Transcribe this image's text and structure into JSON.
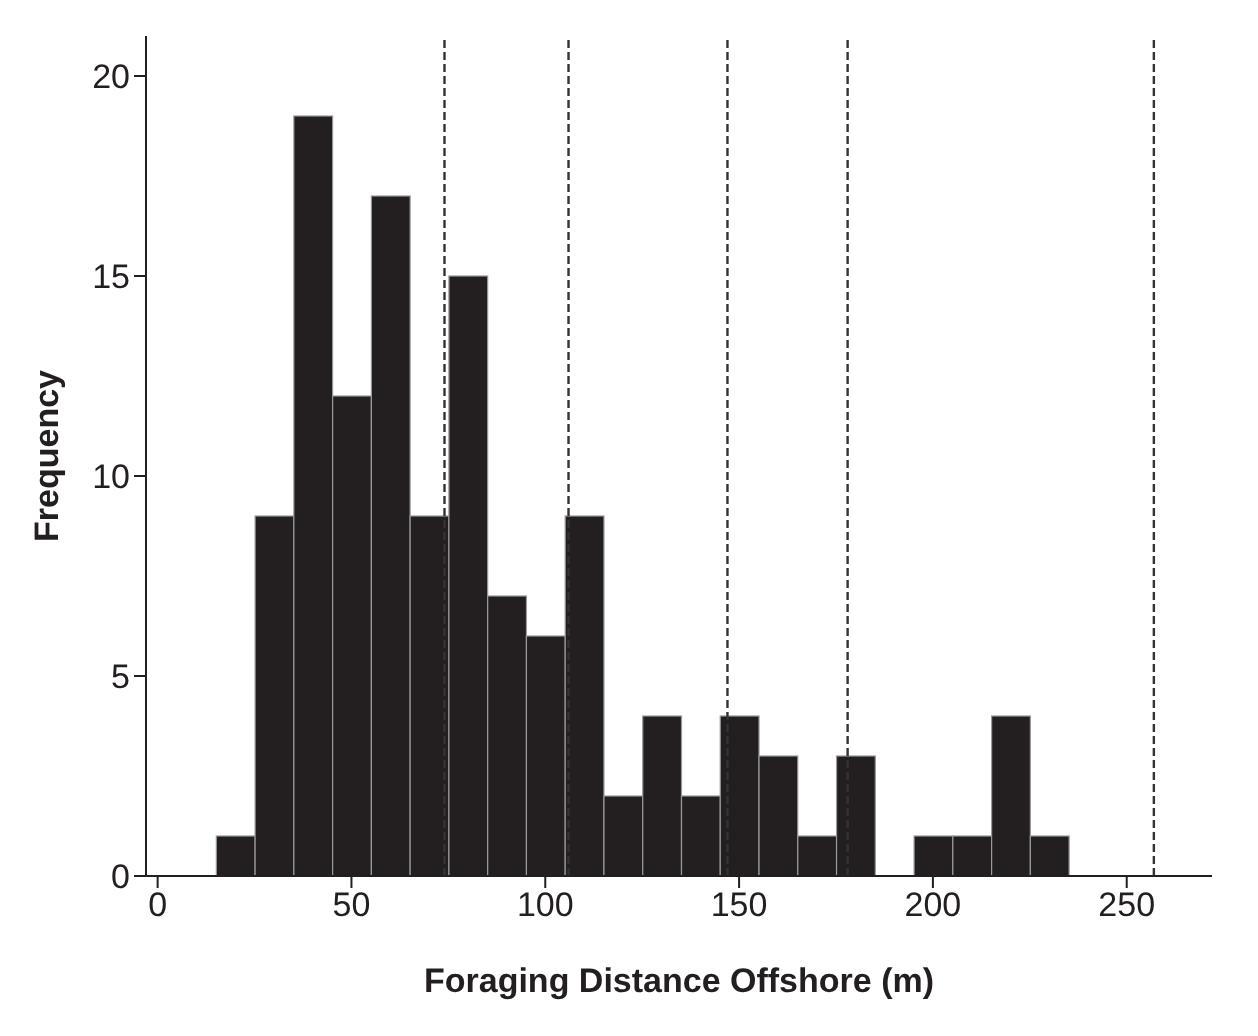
{
  "chart_data": {
    "type": "histogram",
    "xlabel": "Foraging Distance Offshore (m)",
    "ylabel": "Frequency",
    "bins": [
      15,
      25,
      35,
      45,
      55,
      65,
      75,
      85,
      95,
      105,
      115,
      125,
      135,
      145,
      155,
      165,
      175,
      185,
      195,
      205,
      215,
      225,
      235
    ],
    "values": [
      1,
      9,
      19,
      12,
      17,
      9,
      15,
      7,
      6,
      9,
      2,
      4,
      2,
      4,
      3,
      1,
      3,
      0,
      1,
      1,
      4,
      1
    ],
    "color": "#231f20",
    "xlim": [
      -3,
      272
    ],
    "xticks": [
      0,
      50,
      100,
      150,
      200,
      250
    ],
    "ylim": [
      0,
      21
    ],
    "yticks": [
      0,
      5,
      10,
      15,
      20
    ],
    "ref_lines": [
      {
        "axis": "x",
        "value": 74,
        "line_style": "dashed",
        "color": "#333333"
      },
      {
        "axis": "x",
        "value": 106,
        "line_style": "dashed",
        "color": "#333333"
      },
      {
        "axis": "x",
        "value": 147,
        "line_style": "dashed",
        "color": "#333333"
      },
      {
        "axis": "x",
        "value": 178,
        "line_style": "dashed",
        "color": "#333333"
      },
      {
        "axis": "x",
        "value": 257,
        "line_style": "dashed",
        "color": "#333333"
      }
    ],
    "grid": false
  }
}
